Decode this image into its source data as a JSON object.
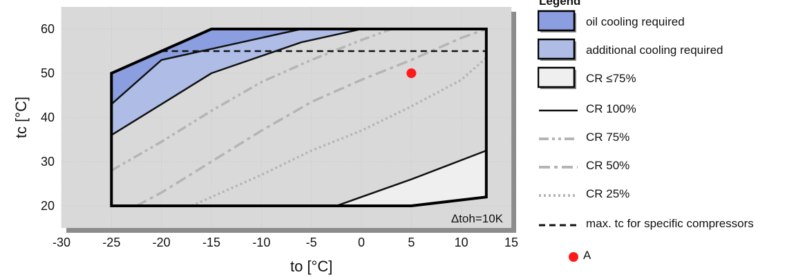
{
  "chart_data": {
    "type": "area",
    "xlabel": "to [°C]",
    "ylabel": "tc [°C]",
    "xlim": [
      -30,
      15
    ],
    "ylim": [
      15,
      65
    ],
    "xticks": [
      -30,
      -25,
      -20,
      -15,
      -10,
      -5,
      0,
      5,
      10,
      15
    ],
    "yticks": [
      20,
      30,
      40,
      50,
      60
    ],
    "grid": true,
    "annotation": "Δtoh=10K",
    "regions": [
      {
        "name": "oil cooling required",
        "color": "#8a9ee0",
        "points": [
          [
            -25,
            50
          ],
          [
            -20,
            55
          ],
          [
            -15,
            60
          ],
          [
            -6,
            60
          ],
          [
            -15,
            55.5
          ],
          [
            -20,
            53
          ],
          [
            -25,
            43
          ]
        ]
      },
      {
        "name": "additional cooling required",
        "color": "#aebce6",
        "points": [
          [
            -25,
            43
          ],
          [
            -20,
            53
          ],
          [
            -15,
            55.5
          ],
          [
            -6,
            60
          ],
          [
            0,
            60
          ],
          [
            -6,
            57
          ],
          [
            -15,
            50
          ],
          [
            -20,
            43
          ],
          [
            -25,
            36
          ]
        ]
      },
      {
        "name": "CR ≤75%",
        "color": "#efefef",
        "points": [
          [
            -2.5,
            20
          ],
          [
            5,
            26
          ],
          [
            12.5,
            32.5
          ],
          [
            12.5,
            22
          ],
          [
            5,
            20
          ]
        ]
      }
    ],
    "envelope": [
      [
        -25,
        20
      ],
      [
        -25,
        50
      ],
      [
        -20,
        55
      ],
      [
        -15,
        60
      ],
      [
        12.5,
        60
      ],
      [
        12.5,
        22
      ],
      [
        5,
        20
      ]
    ],
    "series": [
      {
        "name": "CR 100%",
        "style": "solid",
        "color": "#111111",
        "segments": [
          [
            [
              -25,
              43
            ],
            [
              -20,
              53
            ],
            [
              -15,
              55.5
            ],
            [
              -6,
              60
            ]
          ],
          [
            [
              -25,
              36
            ],
            [
              -20,
              43
            ],
            [
              -15,
              50
            ],
            [
              -6,
              57
            ],
            [
              0,
              60
            ]
          ],
          [
            [
              -2.5,
              20
            ],
            [
              5,
              26
            ],
            [
              12.5,
              32.5
            ]
          ]
        ]
      },
      {
        "name": "CR 75%",
        "style": "dash-dot-dot",
        "color": "#b5b5b5",
        "points": [
          [
            -25,
            28
          ],
          [
            -20,
            34.5
          ],
          [
            -15,
            41.5
          ],
          [
            -10,
            48
          ],
          [
            -5,
            53
          ],
          [
            0,
            57.5
          ],
          [
            3,
            60
          ]
        ]
      },
      {
        "name": "CR 50%",
        "style": "dash-dot",
        "color": "#b5b5b5",
        "points": [
          [
            -22.5,
            20
          ],
          [
            -20,
            23
          ],
          [
            -15,
            30
          ],
          [
            -10,
            37
          ],
          [
            -5,
            43.5
          ],
          [
            0,
            48.5
          ],
          [
            5,
            53
          ],
          [
            10,
            58
          ],
          [
            12.5,
            60
          ]
        ]
      },
      {
        "name": "CR 25%",
        "style": "dotted",
        "color": "#b5b5b5",
        "points": [
          [
            -17,
            20
          ],
          [
            -10,
            27
          ],
          [
            -5,
            32.5
          ],
          [
            0,
            37
          ],
          [
            5,
            42.5
          ],
          [
            10,
            48.5
          ],
          [
            12.5,
            53.5
          ]
        ]
      },
      {
        "name": "max. tc for specific compressors",
        "style": "dashed",
        "color": "#111111",
        "points": [
          [
            -20,
            55
          ],
          [
            12.5,
            55
          ]
        ]
      }
    ],
    "points": [
      {
        "name": "A",
        "x": 5,
        "y": 50,
        "color": "#ff1a1a"
      }
    ]
  },
  "legend": {
    "title": "Legend",
    "items": [
      {
        "label": "oil cooling required",
        "kind": "box",
        "color": "#8a9ee0"
      },
      {
        "label": "additional cooling required",
        "kind": "box",
        "color": "#aebce6"
      },
      {
        "label": "CR ≤75%",
        "kind": "box",
        "color": "#efefef"
      },
      {
        "label": "CR 100%",
        "kind": "line",
        "style": "solid",
        "color": "#111111"
      },
      {
        "label": "CR 75%",
        "kind": "line",
        "style": "dash-dot-dot",
        "color": "#b5b5b5"
      },
      {
        "label": "CR 50%",
        "kind": "line",
        "style": "dash-dot",
        "color": "#b5b5b5"
      },
      {
        "label": "CR 25%",
        "kind": "line",
        "style": "dotted",
        "color": "#b5b5b5"
      },
      {
        "label": "max. tc for specific compressors",
        "kind": "line",
        "style": "dashed",
        "color": "#111111"
      },
      {
        "label": "A",
        "kind": "dot",
        "color": "#ff1a1a"
      }
    ]
  }
}
